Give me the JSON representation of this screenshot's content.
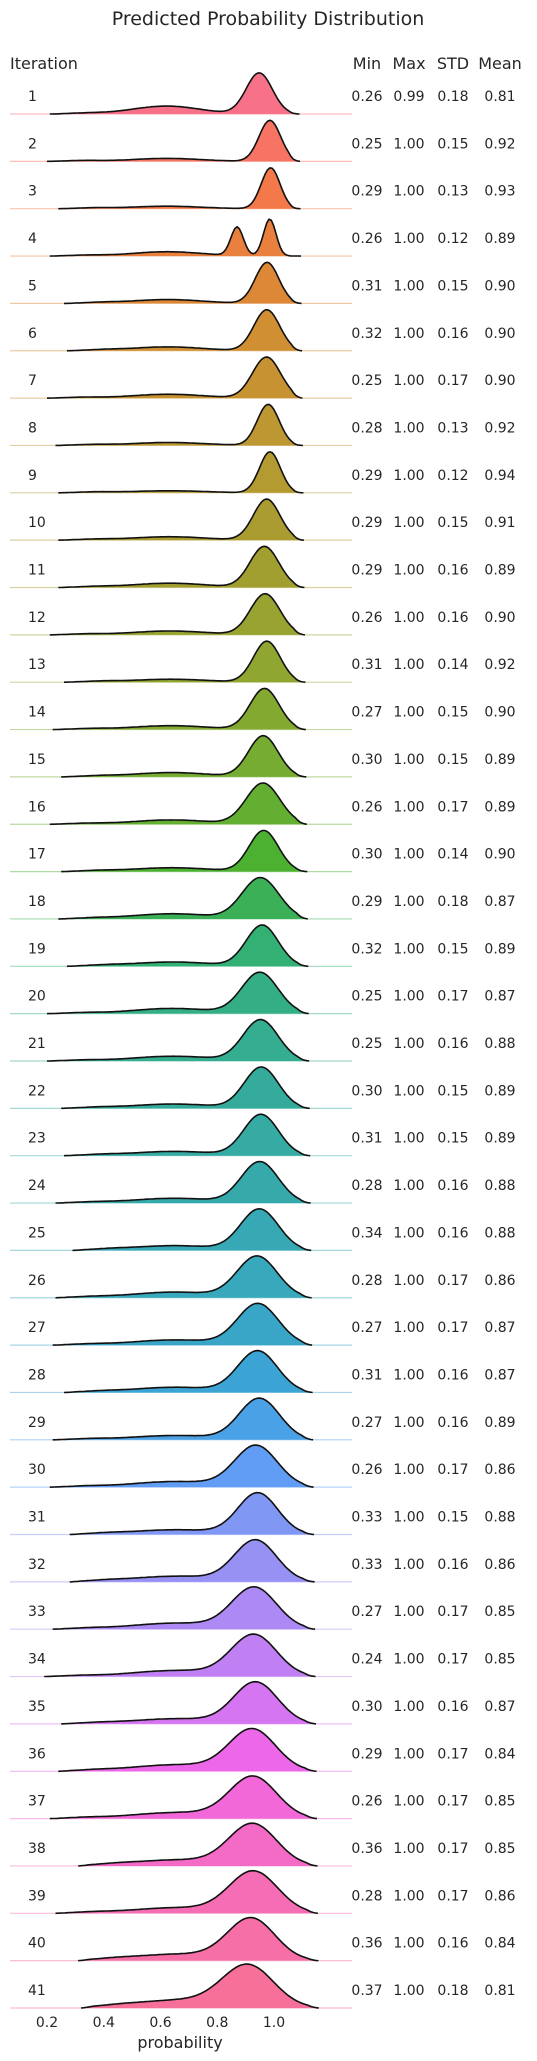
{
  "chart_data": {
    "type": "ridgeline",
    "title": "Predicted Probability Distribution",
    "xlabel": "probability",
    "x_ticks": [
      "0.2",
      "0.4",
      "0.6",
      "0.8",
      "1.0"
    ],
    "x_tick_values": [
      0.2,
      0.4,
      0.6,
      0.8,
      1.0
    ],
    "xlim": [
      0.1,
      1.3
    ],
    "columns": {
      "iteration": "Iteration",
      "min": "Min",
      "max": "Max",
      "std": "STD",
      "mean": "Mean"
    },
    "rows": [
      {
        "iteration": "1",
        "min": "0.26",
        "max": "0.99",
        "std": "0.18",
        "mean": "0.81"
      },
      {
        "iteration": "2",
        "min": "0.25",
        "max": "1.00",
        "std": "0.15",
        "mean": "0.92"
      },
      {
        "iteration": "3",
        "min": "0.29",
        "max": "1.00",
        "std": "0.13",
        "mean": "0.93"
      },
      {
        "iteration": "4",
        "min": "0.26",
        "max": "1.00",
        "std": "0.12",
        "mean": "0.89"
      },
      {
        "iteration": "5",
        "min": "0.31",
        "max": "1.00",
        "std": "0.15",
        "mean": "0.90"
      },
      {
        "iteration": "6",
        "min": "0.32",
        "max": "1.00",
        "std": "0.16",
        "mean": "0.90"
      },
      {
        "iteration": "7",
        "min": "0.25",
        "max": "1.00",
        "std": "0.17",
        "mean": "0.90"
      },
      {
        "iteration": "8",
        "min": "0.28",
        "max": "1.00",
        "std": "0.13",
        "mean": "0.92"
      },
      {
        "iteration": "9",
        "min": "0.29",
        "max": "1.00",
        "std": "0.12",
        "mean": "0.94"
      },
      {
        "iteration": "10",
        "min": "0.29",
        "max": "1.00",
        "std": "0.15",
        "mean": "0.91"
      },
      {
        "iteration": "11",
        "min": "0.29",
        "max": "1.00",
        "std": "0.16",
        "mean": "0.89"
      },
      {
        "iteration": "12",
        "min": "0.26",
        "max": "1.00",
        "std": "0.16",
        "mean": "0.90"
      },
      {
        "iteration": "13",
        "min": "0.31",
        "max": "1.00",
        "std": "0.14",
        "mean": "0.92"
      },
      {
        "iteration": "14",
        "min": "0.27",
        "max": "1.00",
        "std": "0.15",
        "mean": "0.90"
      },
      {
        "iteration": "15",
        "min": "0.30",
        "max": "1.00",
        "std": "0.15",
        "mean": "0.89"
      },
      {
        "iteration": "16",
        "min": "0.26",
        "max": "1.00",
        "std": "0.17",
        "mean": "0.89"
      },
      {
        "iteration": "17",
        "min": "0.30",
        "max": "1.00",
        "std": "0.14",
        "mean": "0.90"
      },
      {
        "iteration": "18",
        "min": "0.29",
        "max": "1.00",
        "std": "0.18",
        "mean": "0.87"
      },
      {
        "iteration": "19",
        "min": "0.32",
        "max": "1.00",
        "std": "0.15",
        "mean": "0.89"
      },
      {
        "iteration": "20",
        "min": "0.25",
        "max": "1.00",
        "std": "0.17",
        "mean": "0.87"
      },
      {
        "iteration": "21",
        "min": "0.25",
        "max": "1.00",
        "std": "0.16",
        "mean": "0.88"
      },
      {
        "iteration": "22",
        "min": "0.30",
        "max": "1.00",
        "std": "0.15",
        "mean": "0.89"
      },
      {
        "iteration": "23",
        "min": "0.31",
        "max": "1.00",
        "std": "0.15",
        "mean": "0.89"
      },
      {
        "iteration": "24",
        "min": "0.28",
        "max": "1.00",
        "std": "0.16",
        "mean": "0.88"
      },
      {
        "iteration": "25",
        "min": "0.34",
        "max": "1.00",
        "std": "0.16",
        "mean": "0.88"
      },
      {
        "iteration": "26",
        "min": "0.28",
        "max": "1.00",
        "std": "0.17",
        "mean": "0.86"
      },
      {
        "iteration": "27",
        "min": "0.27",
        "max": "1.00",
        "std": "0.17",
        "mean": "0.87"
      },
      {
        "iteration": "28",
        "min": "0.31",
        "max": "1.00",
        "std": "0.16",
        "mean": "0.87"
      },
      {
        "iteration": "29",
        "min": "0.27",
        "max": "1.00",
        "std": "0.16",
        "mean": "0.89"
      },
      {
        "iteration": "30",
        "min": "0.26",
        "max": "1.00",
        "std": "0.17",
        "mean": "0.86"
      },
      {
        "iteration": "31",
        "min": "0.33",
        "max": "1.00",
        "std": "0.15",
        "mean": "0.88"
      },
      {
        "iteration": "32",
        "min": "0.33",
        "max": "1.00",
        "std": "0.16",
        "mean": "0.86"
      },
      {
        "iteration": "33",
        "min": "0.27",
        "max": "1.00",
        "std": "0.17",
        "mean": "0.85"
      },
      {
        "iteration": "34",
        "min": "0.24",
        "max": "1.00",
        "std": "0.17",
        "mean": "0.85"
      },
      {
        "iteration": "35",
        "min": "0.30",
        "max": "1.00",
        "std": "0.16",
        "mean": "0.87"
      },
      {
        "iteration": "36",
        "min": "0.29",
        "max": "1.00",
        "std": "0.17",
        "mean": "0.84"
      },
      {
        "iteration": "37",
        "min": "0.26",
        "max": "1.00",
        "std": "0.17",
        "mean": "0.85"
      },
      {
        "iteration": "38",
        "min": "0.36",
        "max": "1.00",
        "std": "0.17",
        "mean": "0.85"
      },
      {
        "iteration": "39",
        "min": "0.28",
        "max": "1.00",
        "std": "0.17",
        "mean": "0.86"
      },
      {
        "iteration": "40",
        "min": "0.36",
        "max": "1.00",
        "std": "0.16",
        "mean": "0.84"
      },
      {
        "iteration": "41",
        "min": "0.37",
        "max": "1.00",
        "std": "0.18",
        "mean": "0.81"
      }
    ],
    "colors": [
      "#f77189",
      "#f7754f",
      "#e7823a",
      "#d28e32",
      "#c39532",
      "#b39a31",
      "#a59d31",
      "#97a431",
      "#86a831",
      "#6fad31",
      "#4cb131",
      "#33b06d",
      "#34ae88",
      "#35ac99",
      "#36aba6",
      "#37a9b4",
      "#38a7c3",
      "#3ba3d6",
      "#5b9ef4",
      "#8c95f4",
      "#ac89f4",
      "#cc7af4",
      "#f265e7",
      "#f46bc9",
      "#f56ead",
      "#f7709a"
    ],
    "grid": false,
    "legend": "none"
  }
}
